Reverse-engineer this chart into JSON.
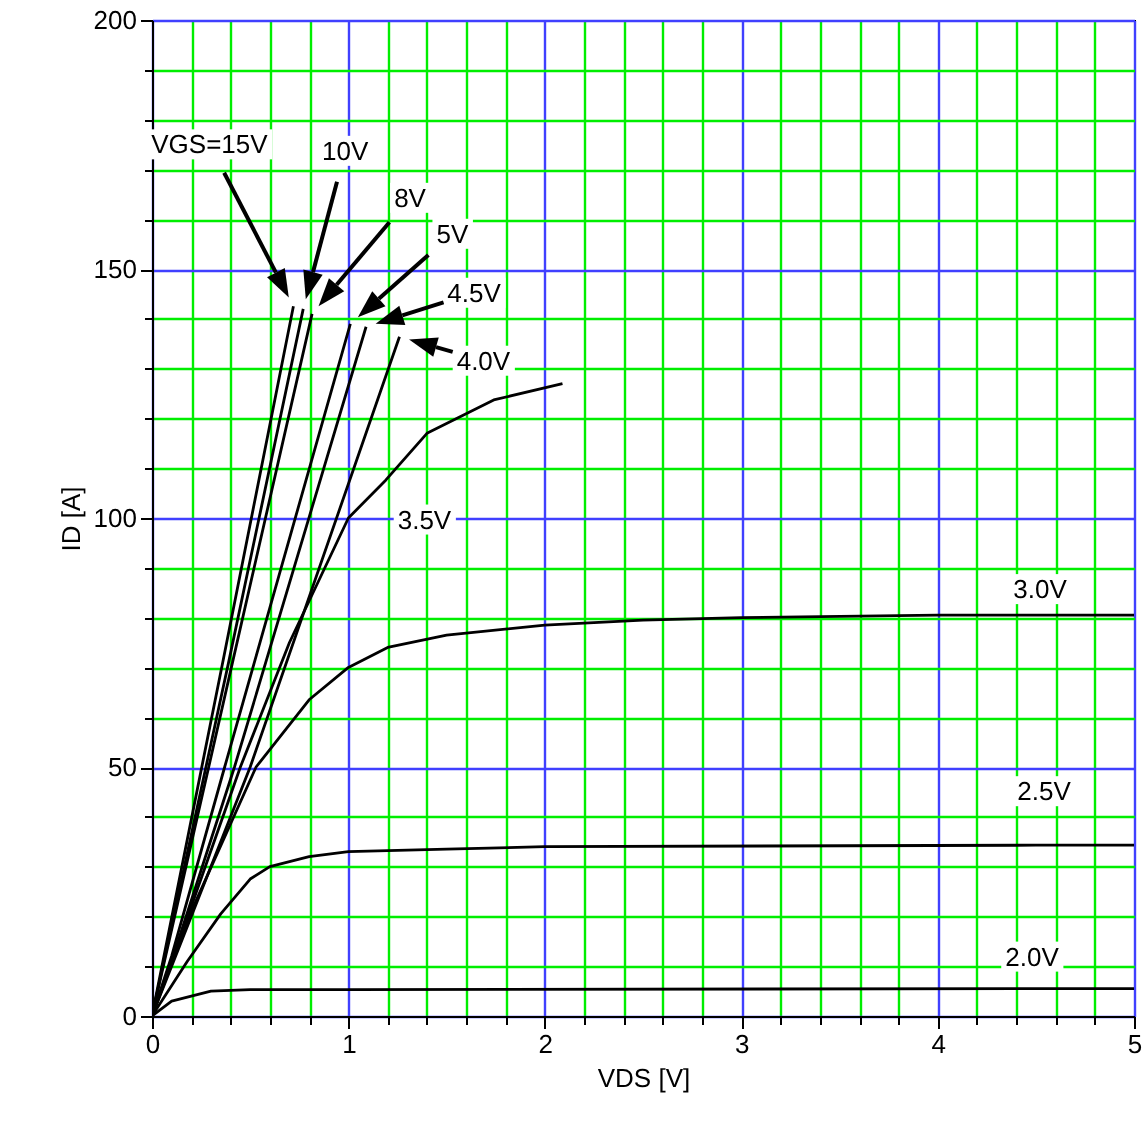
{
  "chart_data": {
    "type": "line",
    "xlabel": "VDS [V]",
    "ylabel": "ID [A]",
    "xlim": [
      0,
      5
    ],
    "ylim": [
      0,
      200
    ],
    "xticks": [
      0,
      {
        "value": 0.2,
        "label": null
      },
      {
        "value": 0.4,
        "label": null
      },
      {
        "value": 0.6,
        "label": null
      },
      {
        "value": 0.8,
        "label": null
      },
      1,
      {
        "value": 1.2,
        "label": null
      },
      {
        "value": 1.4,
        "label": null
      },
      {
        "value": 1.6,
        "label": null
      },
      {
        "value": 1.8,
        "label": null
      },
      2,
      {
        "value": 2.2,
        "label": null
      },
      {
        "value": 2.4,
        "label": null
      },
      {
        "value": 2.6,
        "label": null
      },
      {
        "value": 2.8,
        "label": null
      },
      3,
      {
        "value": 3.2,
        "label": null
      },
      {
        "value": 3.4,
        "label": null
      },
      {
        "value": 3.6,
        "label": null
      },
      {
        "value": 3.8,
        "label": null
      },
      4,
      {
        "value": 4.2,
        "label": null
      },
      {
        "value": 4.4,
        "label": null
      },
      {
        "value": 4.6,
        "label": null
      },
      {
        "value": 4.8,
        "label": null
      },
      5
    ],
    "yticks": [
      0,
      {
        "value": 10,
        "label": null
      },
      {
        "value": 20,
        "label": null
      },
      {
        "value": 30,
        "label": null
      },
      {
        "value": 40,
        "label": null
      },
      50,
      {
        "value": 60,
        "label": null
      },
      {
        "value": 70,
        "label": null
      },
      {
        "value": 80,
        "label": null
      },
      {
        "value": 90,
        "label": null
      },
      100,
      {
        "value": 110,
        "label": null
      },
      {
        "value": 120,
        "label": null
      },
      {
        "value": 130,
        "label": null
      },
      {
        "value": 140,
        "label": null
      },
      150,
      {
        "value": 160,
        "label": null
      },
      {
        "value": 170,
        "label": null
      },
      {
        "value": 180,
        "label": null
      },
      {
        "value": 190,
        "label": null
      },
      200
    ],
    "grid": true,
    "series": [
      {
        "color": "#000000",
        "x": [
          0,
          0.36,
          0.72
        ],
        "values": [
          0,
          71,
          142.5
        ]
      },
      {
        "color": "#000000",
        "x": [
          0,
          0.39,
          0.77
        ],
        "values": [
          0,
          71,
          142
        ]
      },
      {
        "color": "#000000",
        "x": [
          0,
          0.41,
          0.815
        ],
        "values": [
          0,
          71,
          141
        ]
      },
      {
        "color": "#000000",
        "x": [
          0,
          0.1,
          0.37,
          1.01
        ],
        "values": [
          0,
          12,
          50,
          139
        ]
      },
      {
        "color": "#000000",
        "x": [
          0,
          0.1,
          0.42,
          1.09
        ],
        "values": [
          0,
          11,
          50,
          138.4
        ]
      },
      {
        "color": "#000000",
        "x": [
          0,
          0.1,
          0.5,
          1.26
        ],
        "values": [
          0,
          10,
          50,
          136.4
        ]
      },
      {
        "color": "#000000",
        "x": [
          0,
          0.2,
          0.45,
          0.7,
          1.0,
          1.19,
          1.4,
          1.74,
          2.09
        ],
        "values": [
          0,
          22,
          50,
          75,
          100,
          107.6,
          117,
          123.7,
          127
        ]
      },
      {
        "color": "#000000",
        "x": [
          0,
          0.2,
          0.53,
          0.8,
          1.0,
          1.2,
          1.5,
          2,
          2.5,
          3,
          4,
          4.5,
          5
        ],
        "values": [
          0,
          21,
          50,
          63.5,
          70,
          74,
          76.5,
          78.5,
          79.5,
          80,
          80.5,
          80.5,
          80.5
        ]
      },
      {
        "color": "#000000",
        "x": [
          0,
          0.18,
          0.35,
          0.5,
          0.6,
          0.8,
          1,
          1.5,
          2,
          4.5,
          5
        ],
        "values": [
          0,
          11,
          20.5,
          27.5,
          30,
          32,
          33,
          33.5,
          34,
          34.3,
          34.3
        ]
      },
      {
        "color": "#000000",
        "x": [
          0,
          0.1,
          0.3,
          0.5,
          1,
          4.5,
          5
        ],
        "values": [
          0,
          3,
          5,
          5.3,
          5.3,
          5.5,
          5.5
        ]
      }
    ],
    "annotations": [
      "VGS=15V",
      "10V",
      "8V",
      "5V",
      "4.5V",
      "4.0V",
      "3.5V",
      "3.0V",
      "2.5V",
      "2.0V"
    ]
  }
}
